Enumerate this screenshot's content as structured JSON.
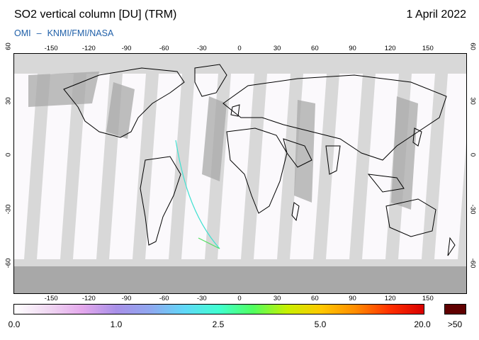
{
  "header": {
    "title": "SO2 vertical column [DU] (TRM)",
    "date": "1 April 2022",
    "credit_left": "OMI",
    "credit_sep": "–",
    "credit_right": "KNMI/FMI/NASA"
  },
  "map": {
    "lon_ticks": [
      "-150",
      "-120",
      "-90",
      "-60",
      "-30",
      "0",
      "30",
      "60",
      "90",
      "120",
      "150"
    ],
    "lat_ticks": [
      "60",
      "30",
      "0",
      "-30",
      "-60"
    ],
    "colors": {
      "no_data": "#d8d8d8",
      "land_no_data": "#a8a8a8",
      "data_background": "#fbf9fc",
      "coastline": "#000000"
    }
  },
  "colorbar": {
    "labels": [
      "0.0",
      "1.0",
      "2.5",
      "5.0",
      "20.0"
    ],
    "overflow_label": ">50",
    "colors": [
      "#ffffff",
      "#f0d8f2",
      "#e4a8ec",
      "#a890e8",
      "#8fa8f0",
      "#60d8f8",
      "#40ffd0",
      "#50ff60",
      "#c8f000",
      "#ffc800",
      "#ff8c00",
      "#ff3000",
      "#d80000"
    ],
    "overflow_color": "#600000"
  }
}
